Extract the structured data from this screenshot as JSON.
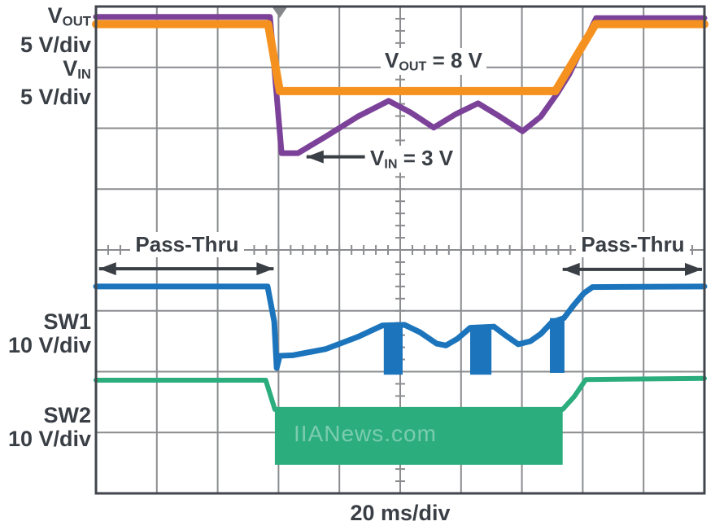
{
  "channels": [
    {
      "pre": "V",
      "sub": "OUT",
      "scale": "5 V/div"
    },
    {
      "pre": "V",
      "sub": "IN",
      "scale": "5 V/div"
    },
    {
      "name": "SW1",
      "scale": "10 V/div"
    },
    {
      "name": "SW2",
      "scale": "10 V/div"
    }
  ],
  "timebase": {
    "label": "20 ms/div"
  },
  "annotations": {
    "vout": {
      "pre": "V",
      "sub": "OUT",
      "post": " = 8 V"
    },
    "vin": {
      "pre": "V",
      "sub": "IN",
      "post": " = 3 V"
    },
    "passthru_left": {
      "label": "Pass-Thru"
    },
    "passthru_right": {
      "label": "Pass-Thru"
    },
    "watermark": {
      "text": "IIANews.com"
    }
  },
  "colors": {
    "vout_trace": "#F5921F",
    "vin_trace": "#7C4299",
    "sw1_trace": "#1C75BC",
    "sw2_trace": "#2BAD7E",
    "grid": "#8A8C8F",
    "border": "#41464C",
    "text": "#3A3F46",
    "trigger": "#85878A"
  },
  "chart_data": {
    "type": "line",
    "title": "",
    "xlabel": "20 ms/div",
    "axes": {
      "x_divisions": 10,
      "y_divisions": 8,
      "minor_per_div": 5,
      "grid": true
    },
    "series": [
      {
        "name": "V_IN",
        "scale": "5 V/div",
        "color": "#7C4299",
        "stroke": 7,
        "points": [
          [
            0,
            0.17
          ],
          [
            2.86,
            0.17
          ],
          [
            3.05,
            2.41
          ],
          [
            3.32,
            2.41
          ],
          [
            3.77,
            2.14
          ],
          [
            4.3,
            1.81
          ],
          [
            4.81,
            1.55
          ],
          [
            5.17,
            1.74
          ],
          [
            5.55,
            1.99
          ],
          [
            5.91,
            1.77
          ],
          [
            6.28,
            1.59
          ],
          [
            6.64,
            1.81
          ],
          [
            7.01,
            2.05
          ],
          [
            7.31,
            1.81
          ],
          [
            7.58,
            1.43
          ],
          [
            7.78,
            1.11
          ],
          [
            8.22,
            0.19
          ],
          [
            10,
            0.19
          ]
        ]
      },
      {
        "name": "V_OUT",
        "scale": "5 V/div",
        "color": "#F5921F",
        "stroke": 10,
        "points": [
          [
            0,
            0.29
          ],
          [
            2.83,
            0.29
          ],
          [
            3.02,
            1.39
          ],
          [
            7.55,
            1.39
          ],
          [
            8.21,
            0.29
          ],
          [
            10,
            0.29
          ]
        ]
      },
      {
        "name": "SW1",
        "scale": "10 V/div",
        "color": "#1C75BC",
        "stroke": 7,
        "points": [
          [
            0,
            4.6
          ],
          [
            2.82,
            4.6
          ],
          [
            2.93,
            5.18
          ],
          [
            2.97,
            5.94
          ],
          [
            3.02,
            5.74
          ],
          [
            3.24,
            5.73
          ],
          [
            3.77,
            5.63
          ],
          [
            4.3,
            5.43
          ],
          [
            4.71,
            5.24
          ],
          [
            5.07,
            5.23
          ],
          [
            5.32,
            5.35
          ],
          [
            5.6,
            5.54
          ],
          [
            5.75,
            5.57
          ],
          [
            5.94,
            5.46
          ],
          [
            6.15,
            5.28
          ],
          [
            6.54,
            5.26
          ],
          [
            6.74,
            5.41
          ],
          [
            6.94,
            5.55
          ],
          [
            7.14,
            5.5
          ],
          [
            7.31,
            5.38
          ],
          [
            7.49,
            5.19
          ],
          [
            7.69,
            5.12
          ],
          [
            7.85,
            4.91
          ],
          [
            8.02,
            4.71
          ],
          [
            8.16,
            4.61
          ],
          [
            10,
            4.6
          ]
        ],
        "bursts": [
          {
            "x1": 4.73,
            "x2": 5.04,
            "y1": 5.22,
            "y2": 6.05
          },
          {
            "x1": 6.15,
            "x2": 6.5,
            "y1": 5.27,
            "y2": 6.05
          },
          {
            "x1": 7.46,
            "x2": 7.7,
            "y1": 5.12,
            "y2": 6.02
          }
        ]
      },
      {
        "name": "SW2",
        "scale": "10 V/div",
        "color": "#2BAD7E",
        "stroke": 6,
        "points": [
          [
            0,
            6.14
          ],
          [
            2.79,
            6.14
          ],
          [
            2.94,
            6.62
          ],
          [
            7.67,
            6.62
          ],
          [
            7.86,
            6.41
          ],
          [
            8.05,
            6.13
          ],
          [
            10,
            6.11
          ]
        ],
        "block": {
          "x1": 2.94,
          "x2": 7.67,
          "y1": 6.62,
          "y2": 7.53
        }
      }
    ],
    "arrows": [
      {
        "x1": 0.05,
        "x2": 2.92,
        "y": 4.31,
        "heads": "both",
        "meaning": "Pass-Thru region left"
      },
      {
        "x1": 7.67,
        "x2": 9.96,
        "y": 4.32,
        "heads": "both",
        "meaning": "Pass-Thru region right"
      },
      {
        "x1": 3.46,
        "x2": 4.42,
        "y": 2.47,
        "heads": "left",
        "meaning": "points at V_IN = 3 V level"
      }
    ],
    "trigger_x_div": 3.02
  }
}
